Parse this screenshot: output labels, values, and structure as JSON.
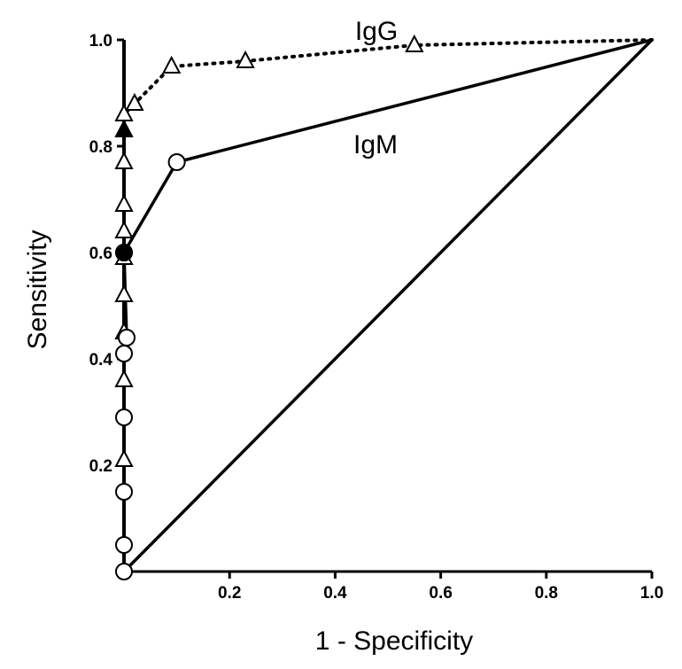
{
  "chart_data": {
    "type": "line",
    "title": "",
    "xlabel": "1 - Specificity",
    "ylabel": "Sensitivity",
    "xlim": [
      0,
      1.0
    ],
    "ylim": [
      0,
      1.0
    ],
    "xticks": [
      "0.2",
      "0.4",
      "0.6",
      "0.8",
      "1.0"
    ],
    "yticks": [
      "0.2",
      "0.4",
      "0.6",
      "0.8",
      "1.0"
    ],
    "grid": false,
    "legend": "none",
    "series": [
      {
        "name": "IgG",
        "style": "dotted",
        "marker": "open-triangle",
        "filled_point": [
          0.0,
          0.83
        ],
        "x": [
          0.0,
          0.0,
          0.0,
          0.0,
          0.0,
          0.0,
          0.0,
          0.0,
          0.0,
          0.0,
          0.0,
          0.02,
          0.09,
          0.23,
          0.55,
          1.0
        ],
        "y": [
          0.0,
          0.21,
          0.36,
          0.45,
          0.52,
          0.59,
          0.64,
          0.69,
          0.77,
          0.83,
          0.86,
          0.88,
          0.95,
          0.96,
          0.99,
          1.0
        ]
      },
      {
        "name": "IgM",
        "style": "solid",
        "marker": "open-circle",
        "filled_point": [
          0.0,
          0.6
        ],
        "x": [
          0.0,
          0.0,
          0.0,
          0.0,
          0.0,
          0.005,
          0.0,
          0.1,
          1.0
        ],
        "y": [
          0.0,
          0.05,
          0.15,
          0.29,
          0.41,
          0.44,
          0.6,
          0.77,
          1.0
        ]
      },
      {
        "name": "",
        "style": "solid",
        "marker": "none",
        "x": [
          0.0,
          1.0
        ],
        "y": [
          0.0,
          1.0
        ]
      }
    ]
  },
  "labels": {
    "igg": "IgG",
    "igm": "IgM"
  }
}
